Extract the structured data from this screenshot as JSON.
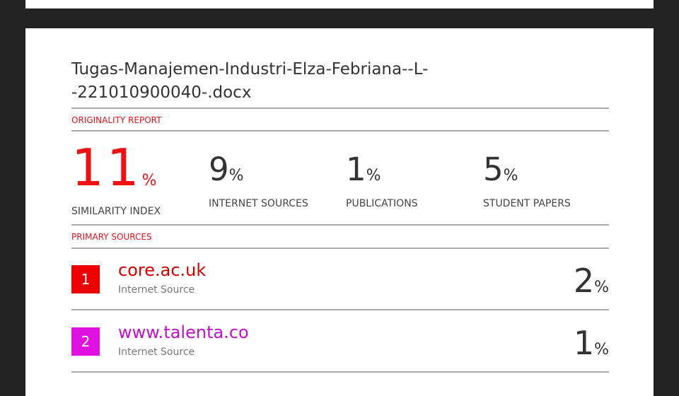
{
  "document": {
    "title": "Tugas-Manajemen-Industri-Elza-Febriana--L--221010900040-.docx"
  },
  "report": {
    "originality_label": "ORIGINALITY REPORT",
    "stats": [
      {
        "value": "11",
        "unit": "%",
        "label": "SIMILARITY INDEX"
      },
      {
        "value": "9",
        "unit": "%",
        "label": "INTERNET SOURCES"
      },
      {
        "value": "1",
        "unit": "%",
        "label": "PUBLICATIONS"
      },
      {
        "value": "5",
        "unit": "%",
        "label": "STUDENT PAPERS"
      }
    ],
    "primary_label": "PRIMARY SOURCES",
    "sources": [
      {
        "rank": "1",
        "name": "core.ac.uk",
        "type": "Internet Source",
        "percent": "2",
        "unit": "%",
        "color": "#ee0000"
      },
      {
        "rank": "2",
        "name": "www.talenta.co",
        "type": "Internet Source",
        "percent": "1",
        "unit": "%",
        "color": "#e010e0"
      }
    ]
  }
}
